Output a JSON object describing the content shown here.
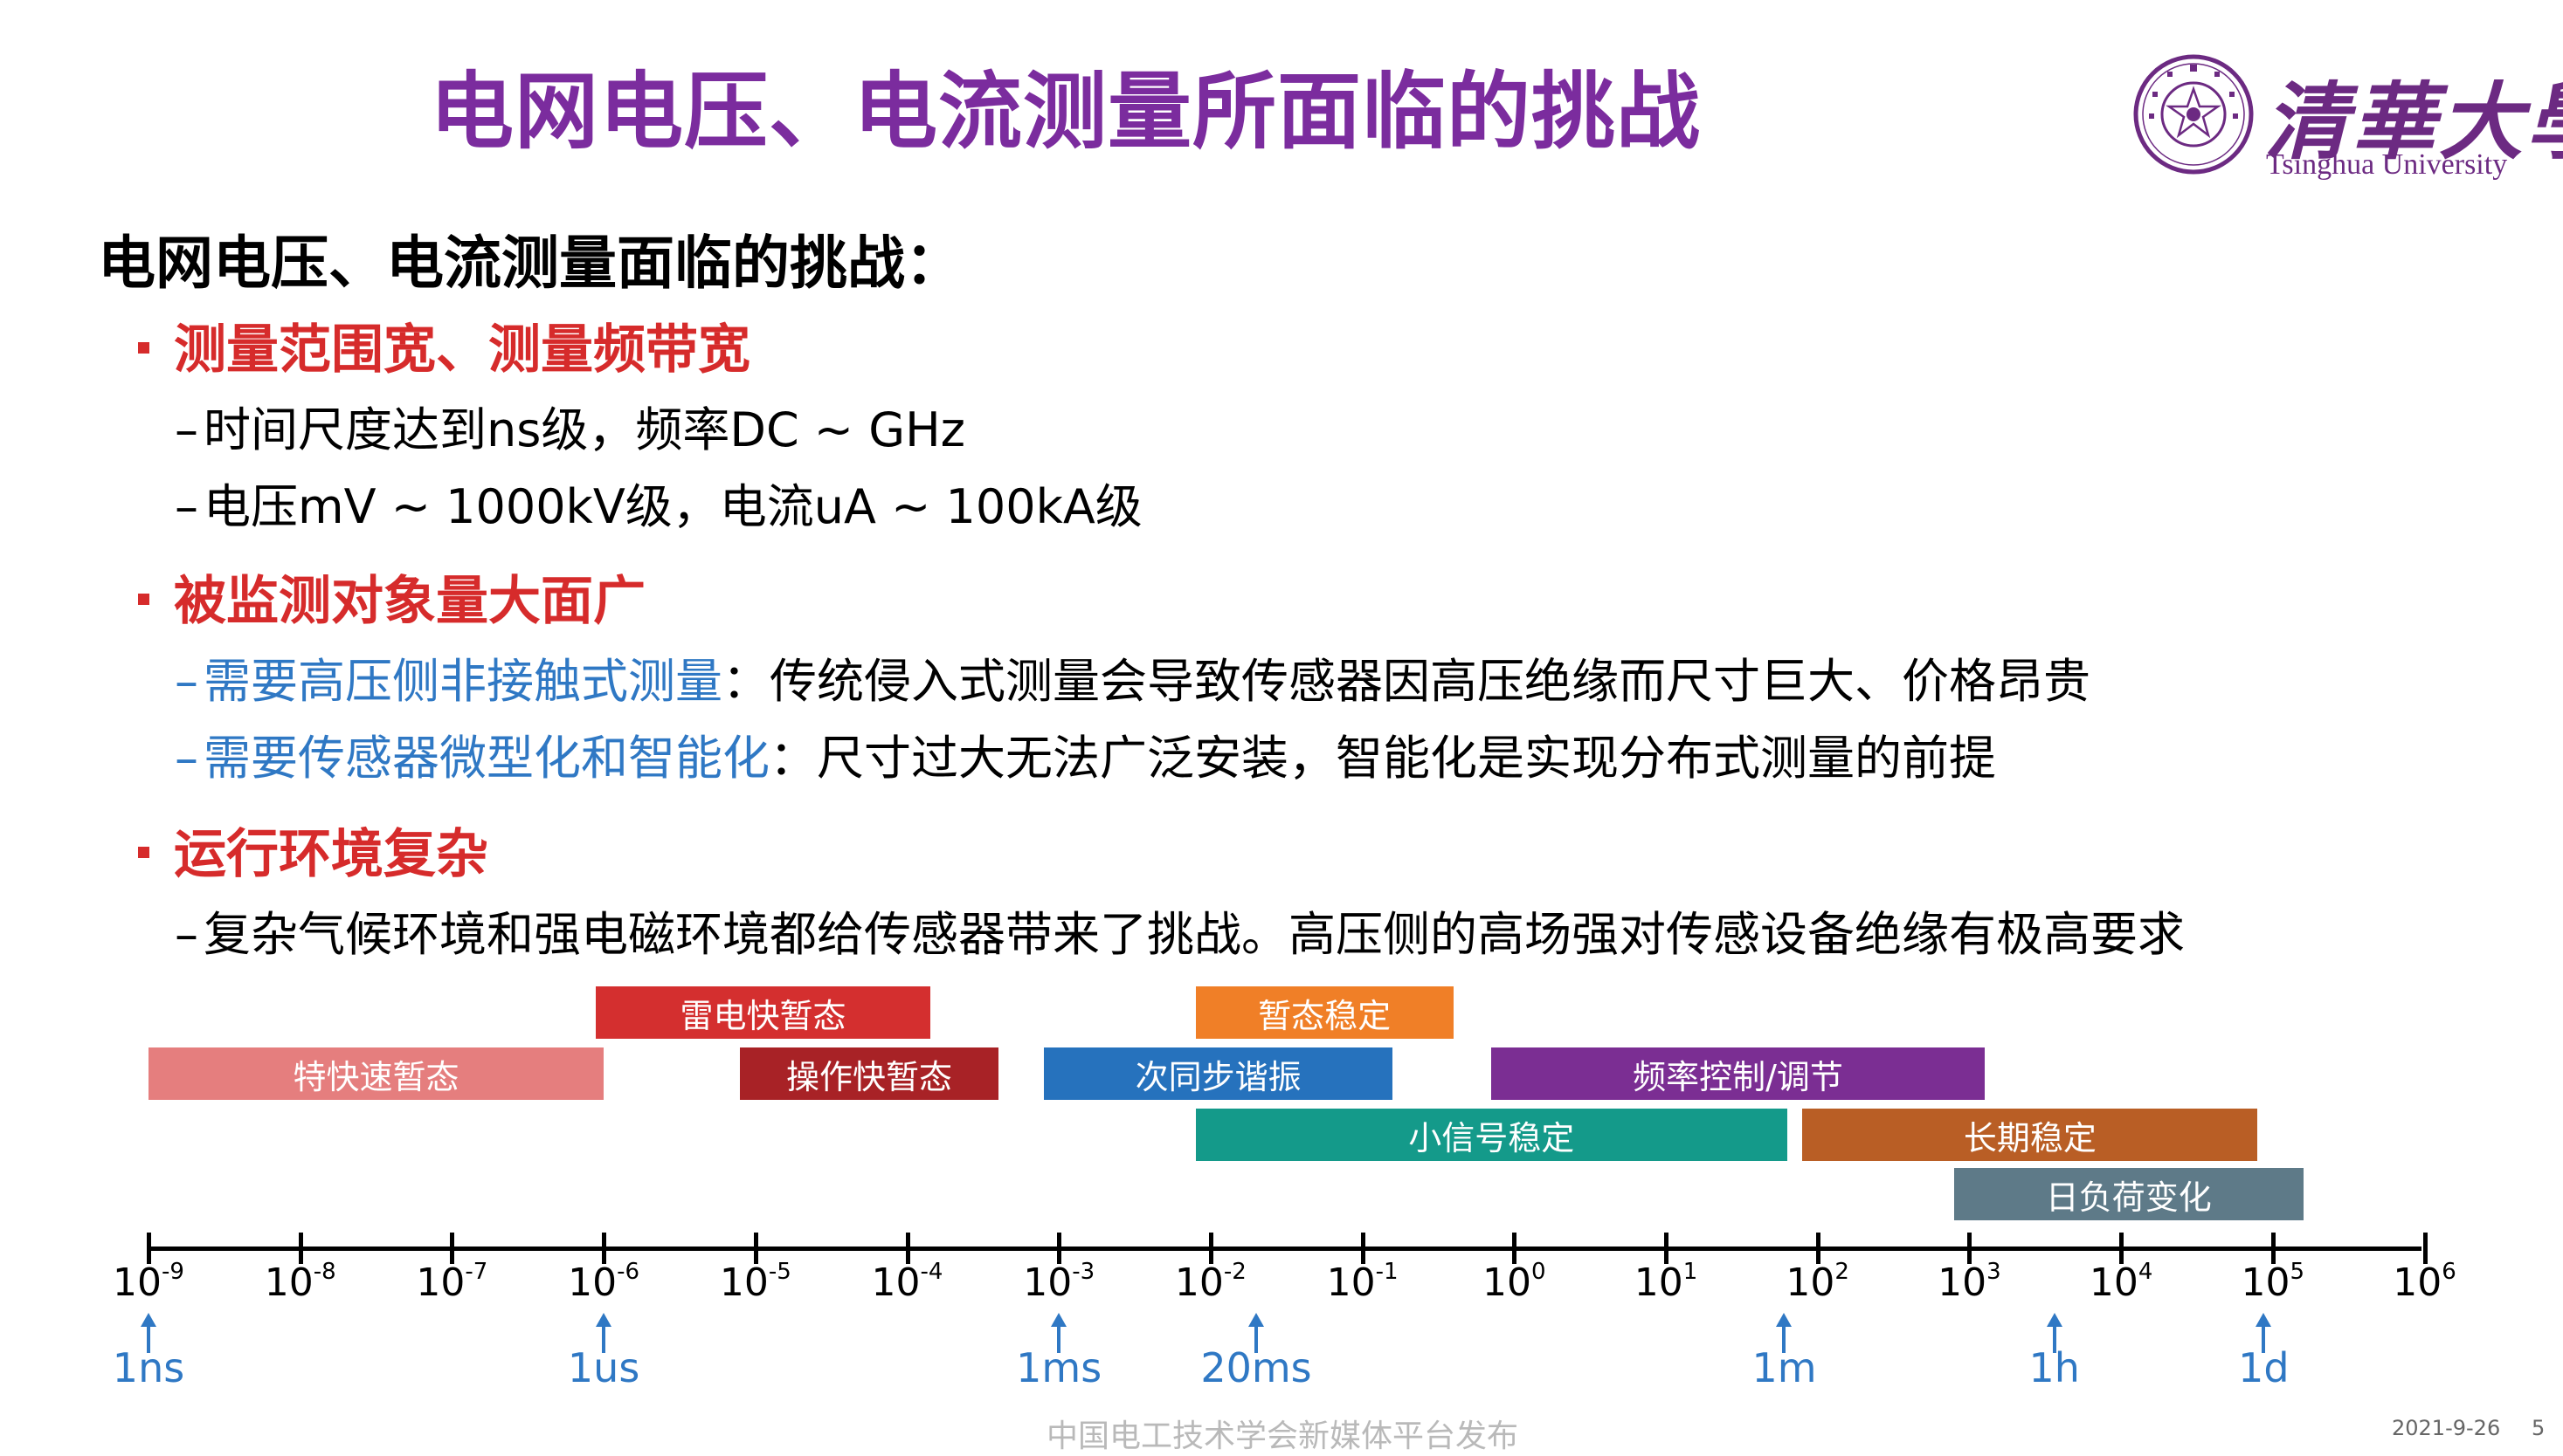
{
  "title": "电网电压、电流测量所面临的挑战",
  "logo": {
    "cn": "清華大學",
    "en": "Tsinghua University",
    "seal_year": "1911",
    "seal_text": "国立清华大学"
  },
  "heading": "电网电压、电流测量面临的挑战：",
  "sections": [
    {
      "title": "测量范围宽、测量频带宽",
      "items": [
        {
          "highlight": "",
          "text": "时间尺度达到ns级，频率DC ~ GHz"
        },
        {
          "highlight": "",
          "text": "电压mV ~ 1000kV级，电流uA ~ 100kA级"
        }
      ]
    },
    {
      "title": "被监测对象量大面广",
      "items": [
        {
          "highlight": "需要高压侧非接触式测量",
          "text": "：传统侵入式测量会导致传感器因高压绝缘而尺寸巨大、价格昂贵"
        },
        {
          "highlight": "需要传感器微型化和智能化",
          "text": "：尺寸过大无法广泛安装，智能化是实现分布式测量的前提"
        }
      ]
    },
    {
      "title": "运行环境复杂",
      "items": [
        {
          "highlight": "",
          "text": "复杂气候环境和强电磁环境都给传感器带来了挑战。高压侧的高场强对传感设备绝缘有极高要求"
        }
      ]
    }
  ],
  "timeline": {
    "axis_base": "10",
    "exponents": [
      "-9",
      "-8",
      "-7",
      "-6",
      "-5",
      "-4",
      "-3",
      "-2",
      "-1",
      "0",
      "1",
      "2",
      "3",
      "4",
      "5",
      "6"
    ],
    "bars": [
      {
        "label": "雷电快暂态",
        "color": "#d42f2f",
        "from_log10": -6.05,
        "to_log10": -3.85
      },
      {
        "label": "暂态稳定",
        "color": "#f07f27",
        "from_log10": -2.1,
        "to_log10": -0.4
      },
      {
        "label": "特快速暂态",
        "color": "#e57e7e",
        "from_log10": -9.0,
        "to_log10": -6.0
      },
      {
        "label": "操作快暂态",
        "color": "#a82226",
        "from_log10": -5.1,
        "to_log10": -3.4
      },
      {
        "label": "次同步谐振",
        "color": "#2672bd",
        "from_log10": -3.1,
        "to_log10": -0.8
      },
      {
        "label": "频率控制/调节",
        "color": "#7b2e93",
        "from_log10": -0.15,
        "to_log10": 3.1
      },
      {
        "label": "小信号稳定",
        "color": "#149a8a",
        "from_log10": -2.1,
        "to_log10": 1.8
      },
      {
        "label": "长期稳定",
        "color": "#b95e25",
        "from_log10": 1.9,
        "to_log10": 4.9
      },
      {
        "label": "日负荷变化",
        "color": "#5e7a88",
        "from_log10": 2.9,
        "to_log10": 5.2
      }
    ],
    "units": [
      {
        "label": "1ns",
        "log10": -9
      },
      {
        "label": "1us",
        "log10": -6
      },
      {
        "label": "1ms",
        "log10": -3
      },
      {
        "label": "20ms",
        "log10": -1.7
      },
      {
        "label": "1m",
        "log10": 1.78
      },
      {
        "label": "1h",
        "log10": 3.56
      },
      {
        "label": "1d",
        "log10": 4.94
      }
    ]
  },
  "footer": "中国电工技术学会新媒体平台发布",
  "date": "2021-9-26",
  "page_number": "5"
}
